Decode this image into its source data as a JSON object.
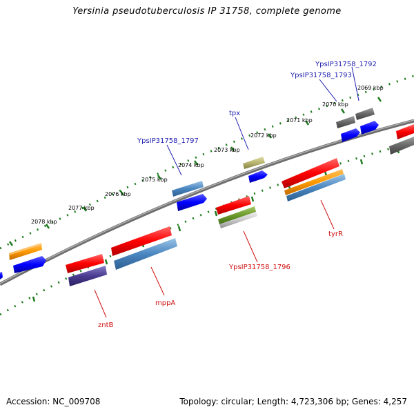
{
  "title": "Yersinia pseudotuberculosis IP 31758, complete genome",
  "footer": {
    "accession": "Accession: NC_009708",
    "stats": "Topology: circular; Length: 4,723,306 bp; Genes: 4,257"
  },
  "colors": {
    "backbone": "#808080",
    "tick": "#1e7b1e",
    "label_forward": "#1c1cb0",
    "label_reverse": "#d01010"
  },
  "kbp_ticks": [
    {
      "label": "2078 kbp"
    },
    {
      "label": "2077 kbp"
    },
    {
      "label": "2076 kbp"
    },
    {
      "label": "2075 kbp"
    },
    {
      "label": "2074 kbp"
    },
    {
      "label": "2073 kbp"
    },
    {
      "label": "2072 kbp"
    },
    {
      "label": "2071 kbp"
    },
    {
      "label": "2070 kbp"
    },
    {
      "label": "2069 kbp"
    }
  ],
  "gene_labels": [
    {
      "text": "YpsIP31758_1792",
      "strand": "forward"
    },
    {
      "text": "YpsIP31758_1793",
      "strand": "forward"
    },
    {
      "text": "tpx",
      "strand": "forward"
    },
    {
      "text": "YpsIP31758_1797",
      "strand": "forward"
    },
    {
      "text": "tyrR",
      "strand": "reverse"
    },
    {
      "text": "YpsIP31758_1796",
      "strand": "reverse"
    },
    {
      "text": "mppA",
      "strand": "reverse"
    },
    {
      "text": "zntB",
      "strand": "reverse"
    }
  ]
}
